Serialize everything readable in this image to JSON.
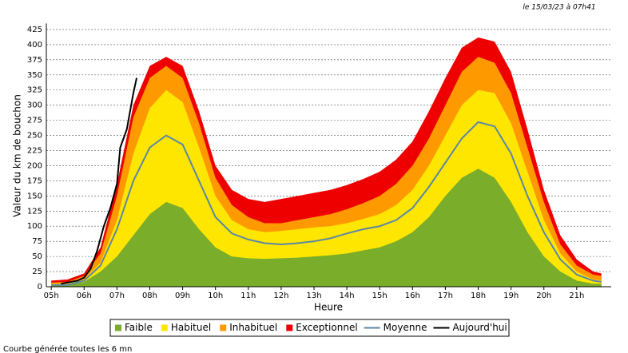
{
  "chart_data": {
    "type": "area",
    "note": "le 15/03/23 à 07h41",
    "footer": "Courbe générée toutes les 6 mn",
    "x_label": "Heure",
    "y_label": "Valeur du  km de bouchon",
    "x": [
      5,
      5.5,
      6,
      6.5,
      7,
      7.5,
      8,
      8.5,
      9,
      9.5,
      10,
      10.5,
      11,
      11.5,
      12,
      12.5,
      13,
      13.5,
      14,
      14.5,
      15,
      15.5,
      16,
      16.5,
      17,
      17.5,
      18,
      18.5,
      19,
      19.5,
      20,
      20.5,
      21,
      21.5,
      21.75
    ],
    "xlim": [
      4.85,
      22.05
    ],
    "xticks": [
      {
        "value": 5,
        "label": "05h"
      },
      {
        "value": 6,
        "label": "06h"
      },
      {
        "value": 7,
        "label": "07h"
      },
      {
        "value": 8,
        "label": "08h"
      },
      {
        "value": 9,
        "label": "09h"
      },
      {
        "value": 10,
        "label": "10h"
      },
      {
        "value": 11,
        "label": "11h"
      },
      {
        "value": 12,
        "label": "12h"
      },
      {
        "value": 13,
        "label": "13h"
      },
      {
        "value": 14,
        "label": "14h"
      },
      {
        "value": 15,
        "label": "15h"
      },
      {
        "value": 16,
        "label": "16h"
      },
      {
        "value": 17,
        "label": "17h"
      },
      {
        "value": 18,
        "label": "18h"
      },
      {
        "value": 19,
        "label": "19h"
      },
      {
        "value": 20,
        "label": "20h"
      },
      {
        "value": 21,
        "label": "21h"
      }
    ],
    "ylim": [
      0,
      435
    ],
    "yticks": [
      0,
      25,
      50,
      75,
      100,
      125,
      150,
      175,
      200,
      225,
      250,
      275,
      300,
      325,
      350,
      375,
      400,
      425
    ],
    "grid": true,
    "series": [
      {
        "name": "Faible",
        "kind": "area",
        "color": "#79ad2a",
        "values": [
          3,
          3,
          8,
          25,
          50,
          85,
          120,
          140,
          130,
          95,
          65,
          50,
          47,
          46,
          47,
          48,
          50,
          52,
          55,
          60,
          65,
          75,
          90,
          115,
          150,
          180,
          195,
          180,
          140,
          90,
          50,
          25,
          10,
          5,
          5
        ]
      },
      {
        "name": "Habituel",
        "kind": "area",
        "color": "#ffe600",
        "values": [
          5,
          5,
          12,
          40,
          110,
          220,
          295,
          325,
          305,
          230,
          150,
          110,
          95,
          90,
          92,
          95,
          98,
          100,
          105,
          112,
          120,
          135,
          160,
          200,
          250,
          300,
          325,
          320,
          270,
          190,
          110,
          55,
          25,
          12,
          10
        ]
      },
      {
        "name": "Inhabituel",
        "kind": "area",
        "color": "#ff9900",
        "values": [
          7,
          8,
          18,
          55,
          150,
          280,
          345,
          365,
          345,
          270,
          180,
          135,
          115,
          105,
          105,
          110,
          115,
          120,
          128,
          138,
          150,
          170,
          200,
          245,
          300,
          355,
          380,
          370,
          320,
          230,
          140,
          70,
          35,
          20,
          18
        ]
      },
      {
        "name": "Exceptionnel",
        "kind": "area",
        "color": "#ee0000",
        "values": [
          10,
          12,
          22,
          65,
          170,
          300,
          365,
          380,
          365,
          290,
          200,
          160,
          145,
          140,
          145,
          150,
          155,
          160,
          168,
          178,
          190,
          210,
          240,
          290,
          345,
          395,
          412,
          405,
          355,
          260,
          160,
          85,
          45,
          25,
          22
        ]
      },
      {
        "name": "Moyenne",
        "kind": "line",
        "color": "#5b86a8",
        "values": [
          3,
          3,
          10,
          35,
          95,
          175,
          230,
          250,
          235,
          175,
          115,
          88,
          78,
          72,
          70,
          72,
          75,
          80,
          88,
          95,
          100,
          110,
          130,
          165,
          205,
          245,
          272,
          265,
          220,
          150,
          90,
          45,
          20,
          10,
          8
        ]
      },
      {
        "name": "Aujourd'hui",
        "kind": "line",
        "color": "#000000",
        "x": [
          5.3,
          5.5,
          5.8,
          6,
          6.2,
          6.4,
          6.6,
          6.8,
          7,
          7.1,
          7.3,
          7.5,
          7.6
        ],
        "values": [
          5,
          7,
          10,
          15,
          30,
          60,
          100,
          130,
          170,
          230,
          260,
          320,
          345
        ]
      }
    ]
  }
}
